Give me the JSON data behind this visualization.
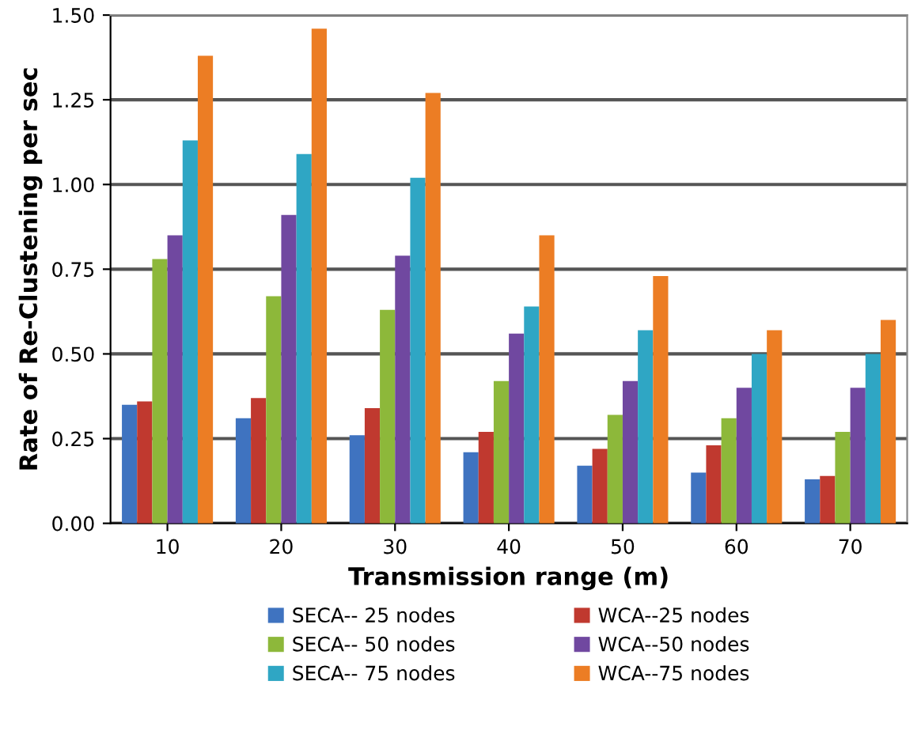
{
  "chart_data": {
    "type": "bar",
    "xlabel": "Transmission range (m)",
    "ylabel": "Rate of Re-Clustening per sec",
    "categories": [
      "10",
      "20",
      "30",
      "40",
      "50",
      "60",
      "70"
    ],
    "series": [
      {
        "name": "SECA-- 25 nodes",
        "color": "#3f73c0",
        "values": [
          0.35,
          0.31,
          0.26,
          0.21,
          0.17,
          0.15,
          0.13
        ]
      },
      {
        "name": "WCA--25 nodes",
        "color": "#c0392f",
        "values": [
          0.36,
          0.37,
          0.34,
          0.27,
          0.22,
          0.23,
          0.14
        ]
      },
      {
        "name": "SECA-- 50 nodes",
        "color": "#8db83a",
        "values": [
          0.78,
          0.67,
          0.63,
          0.42,
          0.32,
          0.31,
          0.27
        ]
      },
      {
        "name": "WCA--50 nodes",
        "color": "#7048a0",
        "values": [
          0.85,
          0.91,
          0.79,
          0.56,
          0.42,
          0.4,
          0.4
        ]
      },
      {
        "name": "SECA-- 75 nodes",
        "color": "#2fa6c4",
        "values": [
          1.13,
          1.09,
          1.02,
          0.64,
          0.57,
          0.5,
          0.5
        ]
      },
      {
        "name": "WCA--75 nodes",
        "color": "#ec7d24",
        "values": [
          1.38,
          1.46,
          1.27,
          0.85,
          0.73,
          0.57,
          0.6
        ]
      }
    ],
    "ylim": [
      0,
      1.5
    ],
    "yticks": [
      {
        "value": 0,
        "label": "0.00"
      },
      {
        "value": 0.25,
        "label": "0.25"
      },
      {
        "value": 0.5,
        "label": "0.50"
      },
      {
        "value": 0.75,
        "label": "0.75"
      },
      {
        "value": 1.0,
        "label": "1.00"
      },
      {
        "value": 1.25,
        "label": "1.25"
      },
      {
        "value": 1.5,
        "label": "1.50"
      }
    ],
    "grid": "y",
    "legend": "bottom"
  }
}
